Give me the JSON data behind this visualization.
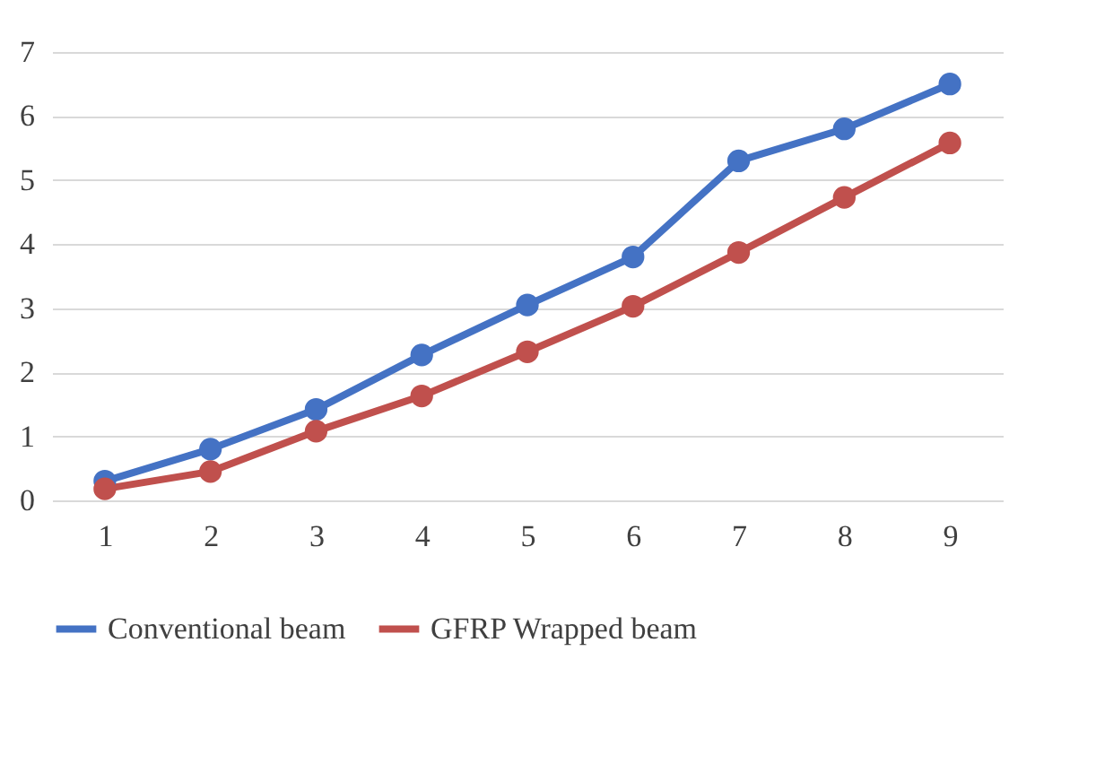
{
  "chart_data": {
    "type": "line",
    "categories": [
      "1",
      "2",
      "3",
      "4",
      "5",
      "6",
      "7",
      "8",
      "9"
    ],
    "series": [
      {
        "name": "Conventional beam",
        "color": "#4472c4",
        "values": [
          0.3,
          0.8,
          1.42,
          2.27,
          3.05,
          3.8,
          5.3,
          5.8,
          6.5
        ]
      },
      {
        "name": "GFRP Wrapped beam",
        "color": "#c0504d",
        "values": [
          0.18,
          0.45,
          1.08,
          1.63,
          2.32,
          3.03,
          3.87,
          4.73,
          5.58
        ]
      }
    ],
    "ylim": [
      0,
      7
    ],
    "yticks": [
      0,
      1,
      2,
      3,
      4,
      5,
      6,
      7
    ],
    "grid": "y",
    "legend": "bottom",
    "marker": "circle",
    "line_style": "solid"
  }
}
